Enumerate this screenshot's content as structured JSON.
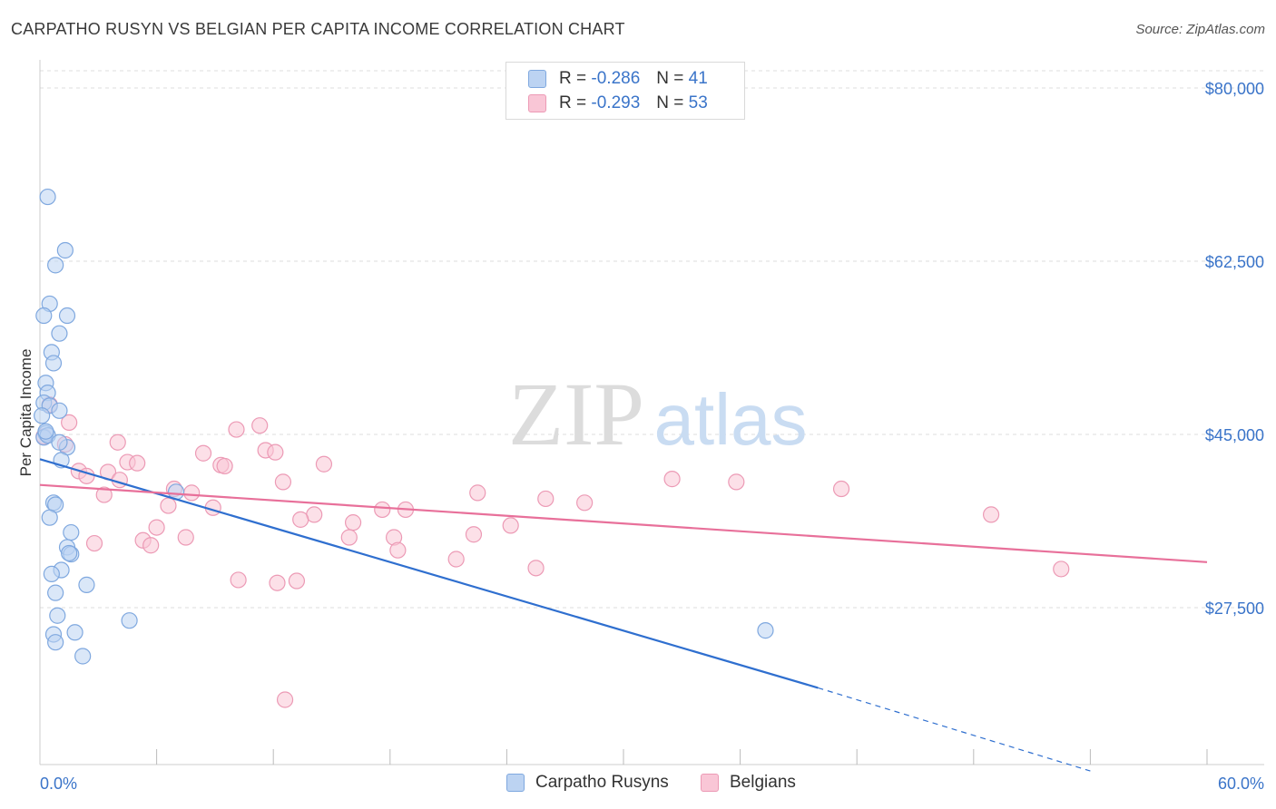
{
  "title": "CARPATHO RUSYN VS BELGIAN PER CAPITA INCOME CORRELATION CHART",
  "source": "Source: ZipAtlas.com",
  "watermark": {
    "zip": "ZIP",
    "atlas": "atlas"
  },
  "legend": {
    "rows": [
      {
        "r_label": "R =",
        "r_value": "-0.286",
        "n_label": "N =",
        "n_value": "41"
      },
      {
        "r_label": "R =",
        "r_value": "-0.293",
        "n_label": "N =",
        "n_value": "53"
      }
    ]
  },
  "colors": {
    "blue_fill": "#bcd3f2",
    "blue_stroke": "#7fa8df",
    "blue_line": "#2f6fcf",
    "pink_fill": "#f9c6d6",
    "pink_stroke": "#ec9ab5",
    "pink_line": "#e8709a",
    "axis_label": "#3a74c9",
    "grid": "#dddddd"
  },
  "chart_data": {
    "type": "scatter",
    "title": "CARPATHO RUSYN VS BELGIAN PER CAPITA INCOME CORRELATION CHART",
    "xlabel": "",
    "ylabel": "Per Capita Income",
    "xlim": [
      0,
      60
    ],
    "ylim": [
      11000,
      81500
    ],
    "x_tick_labels": {
      "left": "0.0%",
      "right": "60.0%"
    },
    "y_ticks": [
      {
        "value": 80000,
        "label": "$80,000"
      },
      {
        "value": 62500,
        "label": "$62,500"
      },
      {
        "value": 45000,
        "label": "$45,000"
      },
      {
        "value": 27500,
        "label": "$27,500"
      }
    ],
    "series": [
      {
        "name": "Carpatho Rusyns",
        "color": "blue",
        "r": -0.286,
        "n": 41,
        "trend": {
          "x0": 0,
          "y0": 42500,
          "x1": 40,
          "y1": 19400,
          "dash_to_x": 54,
          "dash_to_y": 11000
        },
        "points": [
          [
            0.4,
            69000
          ],
          [
            1.3,
            63600
          ],
          [
            0.8,
            62100
          ],
          [
            0.5,
            58200
          ],
          [
            1.4,
            57000
          ],
          [
            0.2,
            57000
          ],
          [
            1.0,
            55200
          ],
          [
            0.6,
            53300
          ],
          [
            0.7,
            52200
          ],
          [
            0.3,
            50200
          ],
          [
            0.4,
            49200
          ],
          [
            0.2,
            48200
          ],
          [
            0.5,
            47900
          ],
          [
            1.0,
            47400
          ],
          [
            0.1,
            46900
          ],
          [
            0.3,
            45100
          ],
          [
            0.2,
            44700
          ],
          [
            0.4,
            44900
          ],
          [
            1.4,
            43700
          ],
          [
            1.1,
            42400
          ],
          [
            0.7,
            38100
          ],
          [
            0.8,
            37900
          ],
          [
            0.5,
            36600
          ],
          [
            1.6,
            35100
          ],
          [
            1.4,
            33600
          ],
          [
            1.6,
            32900
          ],
          [
            1.5,
            33000
          ],
          [
            1.1,
            31300
          ],
          [
            0.6,
            30900
          ],
          [
            2.4,
            29800
          ],
          [
            0.8,
            29000
          ],
          [
            0.9,
            26700
          ],
          [
            4.6,
            26200
          ],
          [
            0.7,
            24800
          ],
          [
            1.8,
            25000
          ],
          [
            0.8,
            24000
          ],
          [
            2.2,
            22600
          ],
          [
            7.0,
            39200
          ],
          [
            37.3,
            25200
          ],
          [
            0.3,
            45300
          ],
          [
            1.0,
            44200
          ]
        ]
      },
      {
        "name": "Belgians",
        "color": "pink",
        "r": -0.293,
        "n": 53,
        "trend": {
          "x0": 0,
          "y0": 39900,
          "x1": 60,
          "y1": 32100
        },
        "points": [
          [
            0.2,
            44800
          ],
          [
            0.5,
            48000
          ],
          [
            1.5,
            46200
          ],
          [
            1.3,
            44000
          ],
          [
            4.0,
            44200
          ],
          [
            10.1,
            45500
          ],
          [
            11.3,
            45900
          ],
          [
            11.6,
            43400
          ],
          [
            8.4,
            43100
          ],
          [
            12.1,
            43200
          ],
          [
            9.3,
            41900
          ],
          [
            9.5,
            41800
          ],
          [
            4.5,
            42200
          ],
          [
            5.0,
            42100
          ],
          [
            14.6,
            42000
          ],
          [
            3.5,
            41200
          ],
          [
            4.1,
            40400
          ],
          [
            2.0,
            41300
          ],
          [
            2.4,
            40800
          ],
          [
            12.5,
            40200
          ],
          [
            3.3,
            38900
          ],
          [
            6.9,
            39500
          ],
          [
            7.8,
            39100
          ],
          [
            32.5,
            40500
          ],
          [
            35.8,
            40200
          ],
          [
            41.2,
            39500
          ],
          [
            22.5,
            39100
          ],
          [
            26.0,
            38500
          ],
          [
            28.0,
            38100
          ],
          [
            6.6,
            37800
          ],
          [
            8.9,
            37600
          ],
          [
            17.6,
            37400
          ],
          [
            18.8,
            37400
          ],
          [
            14.1,
            36900
          ],
          [
            13.4,
            36400
          ],
          [
            16.1,
            36100
          ],
          [
            24.2,
            35800
          ],
          [
            6.0,
            35600
          ],
          [
            48.9,
            36900
          ],
          [
            22.3,
            34900
          ],
          [
            15.9,
            34600
          ],
          [
            18.2,
            34600
          ],
          [
            7.5,
            34600
          ],
          [
            5.3,
            34300
          ],
          [
            2.8,
            34000
          ],
          [
            5.7,
            33800
          ],
          [
            18.4,
            33300
          ],
          [
            21.4,
            32400
          ],
          [
            25.5,
            31500
          ],
          [
            52.5,
            31400
          ],
          [
            10.2,
            30300
          ],
          [
            13.2,
            30200
          ],
          [
            12.2,
            30000
          ]
        ],
        "outlier": [
          12.6,
          18200
        ]
      }
    ]
  },
  "bottom_legend": [
    {
      "label": "Carpatho Rusyns"
    },
    {
      "label": "Belgians"
    }
  ]
}
